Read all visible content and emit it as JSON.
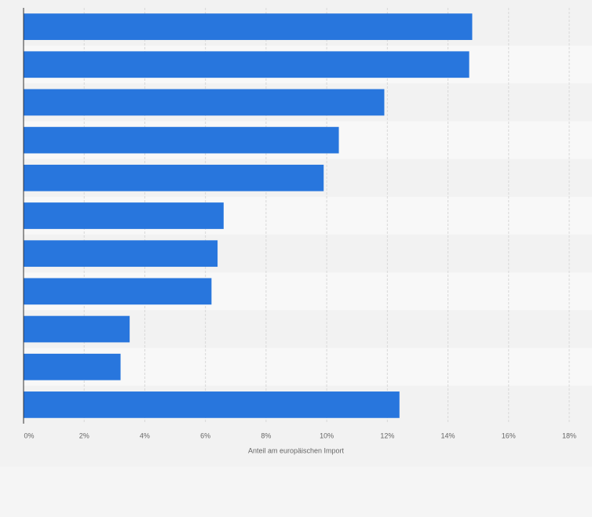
{
  "chart_data": {
    "type": "barh",
    "x_label": "Anteil am europäischen Import",
    "categories": [
      null,
      null,
      null,
      null,
      null,
      null,
      null,
      null,
      null,
      null,
      null
    ],
    "values": [
      14.8,
      14.7,
      11.9,
      10.4,
      9.9,
      6.6,
      6.4,
      6.2,
      3.5,
      3.2,
      12.4
    ],
    "color": "#2876dd",
    "xlim": [
      0,
      18
    ],
    "xticks": [
      {
        "value": 0,
        "label": "0%"
      },
      {
        "value": 2,
        "label": "2%"
      },
      {
        "value": 4,
        "label": "4%"
      },
      {
        "value": 6,
        "label": "6%"
      },
      {
        "value": 8,
        "label": "8%"
      },
      {
        "value": 10,
        "label": "10%"
      },
      {
        "value": 12,
        "label": "12%"
      },
      {
        "value": 14,
        "label": "14%"
      },
      {
        "value": 16,
        "label": "16%"
      },
      {
        "value": 18,
        "label": "18%"
      }
    ],
    "grid": true
  }
}
